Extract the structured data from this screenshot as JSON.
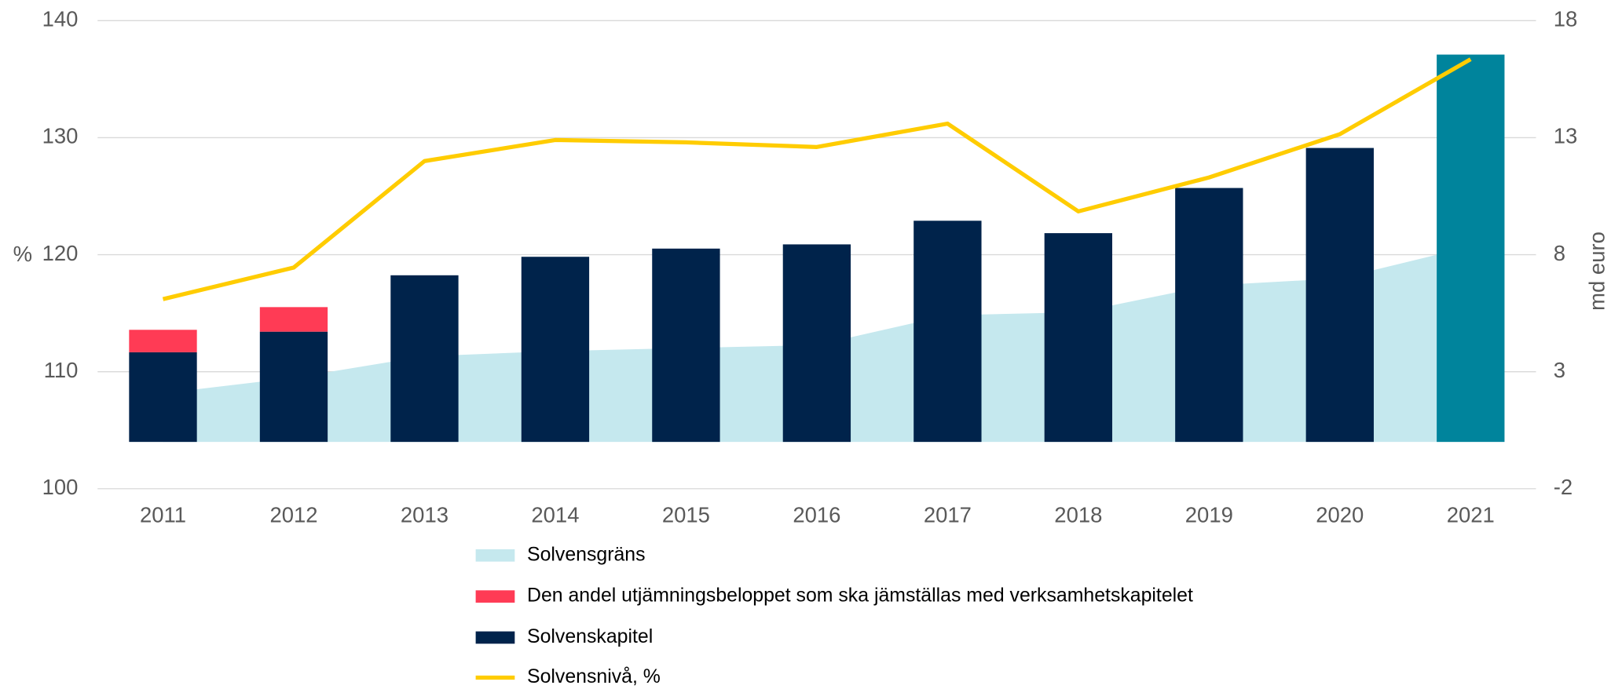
{
  "chart_data": {
    "type": "bar",
    "categories": [
      "2011",
      "2012",
      "2013",
      "2014",
      "2015",
      "2016",
      "2017",
      "2018",
      "2019",
      "2020",
      "2021"
    ],
    "ylabel": "%",
    "y2label": "md euro",
    "ylim": [
      100,
      140
    ],
    "yticks": [
      100,
      110,
      120,
      130,
      140
    ],
    "y2lim": [
      -2,
      18
    ],
    "y2ticks": [
      -2,
      3,
      8,
      13,
      18
    ],
    "grid": true,
    "series": [
      {
        "name": "Solvensgräns",
        "type": "area",
        "axis": "y2",
        "color": "#c5e8ee",
        "values": [
          2.08,
          2.74,
          3.66,
          3.88,
          4.01,
          4.14,
          5.41,
          5.54,
          6.68,
          6.99,
          8.35
        ]
      },
      {
        "name": "Den andel utjämningsbeloppet som ska jämställas med verksamhetskapitelet",
        "type": "stacked-bar",
        "axis": "y2",
        "color": "#ff3b55",
        "values": [
          0.96,
          1.05,
          null,
          null,
          null,
          null,
          null,
          null,
          null,
          null,
          null
        ]
      },
      {
        "name": "Solvenskapitel",
        "type": "bar",
        "axis": "y2",
        "color": "#00234b",
        "point_colors": [
          null,
          null,
          null,
          null,
          null,
          null,
          null,
          null,
          null,
          null,
          "#00849c"
        ],
        "values": [
          3.83,
          4.71,
          7.12,
          7.91,
          8.26,
          8.44,
          9.45,
          8.92,
          10.85,
          12.56,
          16.55
        ]
      },
      {
        "name": "Solvensnivå, %",
        "type": "line",
        "axis": "y",
        "color": "#ffcc00",
        "values": [
          116.2,
          118.9,
          128.0,
          129.8,
          129.6,
          129.2,
          131.2,
          123.7,
          126.6,
          130.3,
          136.7
        ]
      }
    ]
  }
}
